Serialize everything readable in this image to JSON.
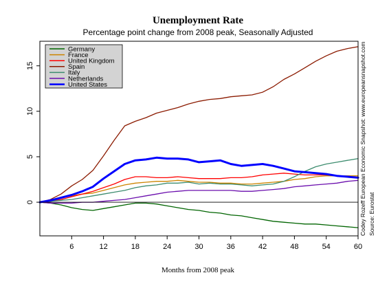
{
  "chart_data": {
    "type": "line",
    "title": "Unemployment Rate",
    "subtitle": "Percentage point change from 2008 peak, Seasonally Adjusted",
    "xlabel": "Months from 2008 peak",
    "ylabel": "",
    "xlim": [
      0,
      60
    ],
    "ylim": [
      -3.7,
      17.7
    ],
    "x_ticks": [
      6,
      12,
      18,
      24,
      30,
      36,
      42,
      48,
      54,
      60
    ],
    "y_ticks": [
      0,
      5,
      10,
      15
    ],
    "zero_line": true,
    "grid": false,
    "legend_position": "top-left",
    "side_notes": [
      "Codey Rozeff European Economic Snapshot: www.europeansnapshot.com",
      "Source: Eurostat"
    ],
    "series": [
      {
        "name": "Germany",
        "color": "#006400",
        "width": 1.3,
        "x": [
          0,
          2,
          4,
          6,
          8,
          10,
          12,
          14,
          16,
          18,
          20,
          22,
          24,
          26,
          28,
          30,
          32,
          34,
          36,
          38,
          40,
          42,
          44,
          46,
          48,
          50,
          52,
          54,
          56,
          58,
          60
        ],
        "y": [
          0,
          -0.1,
          -0.3,
          -0.6,
          -0.8,
          -0.9,
          -0.7,
          -0.5,
          -0.3,
          -0.1,
          -0.1,
          -0.2,
          -0.4,
          -0.6,
          -0.8,
          -0.9,
          -1.1,
          -1.2,
          -1.4,
          -1.5,
          -1.7,
          -1.9,
          -2.1,
          -2.2,
          -2.3,
          -2.4,
          -2.4,
          -2.5,
          -2.6,
          -2.7,
          -2.8
        ]
      },
      {
        "name": "France",
        "color": "#CC8400",
        "width": 1.3,
        "x": [
          0,
          2,
          4,
          6,
          8,
          10,
          12,
          14,
          16,
          18,
          20,
          22,
          24,
          26,
          28,
          30,
          32,
          34,
          36,
          38,
          40,
          42,
          44,
          46,
          48,
          50,
          52,
          54,
          56,
          58,
          60
        ],
        "y": [
          0,
          0.2,
          0.5,
          0.7,
          0.9,
          1.0,
          1.3,
          1.6,
          1.9,
          2.1,
          2.2,
          2.3,
          2.3,
          2.4,
          2.3,
          2.2,
          2.2,
          2.1,
          2.1,
          2.0,
          2.0,
          2.1,
          2.2,
          2.3,
          2.5,
          2.6,
          2.8,
          2.9,
          2.9,
          2.9,
          2.9
        ]
      },
      {
        "name": "United Kingdom",
        "color": "#FF0000",
        "width": 1.3,
        "x": [
          0,
          2,
          4,
          6,
          8,
          10,
          12,
          14,
          16,
          18,
          20,
          22,
          24,
          26,
          28,
          30,
          32,
          34,
          36,
          38,
          40,
          42,
          44,
          46,
          48,
          50,
          52,
          54,
          56,
          58,
          60
        ],
        "y": [
          0,
          0.1,
          0.3,
          0.6,
          0.9,
          1.2,
          1.6,
          2.0,
          2.5,
          2.8,
          2.8,
          2.7,
          2.7,
          2.8,
          2.7,
          2.6,
          2.6,
          2.6,
          2.7,
          2.7,
          2.8,
          3.0,
          3.1,
          3.2,
          3.1,
          3.0,
          3.0,
          3.0,
          2.9,
          2.8,
          2.7
        ]
      },
      {
        "name": "Spain",
        "color": "#8B1A00",
        "width": 1.3,
        "x": [
          0,
          2,
          4,
          6,
          8,
          10,
          12,
          14,
          16,
          18,
          20,
          22,
          24,
          26,
          28,
          30,
          32,
          34,
          36,
          38,
          40,
          42,
          44,
          46,
          48,
          50,
          52,
          54,
          56,
          58,
          60
        ],
        "y": [
          0,
          0.3,
          0.9,
          1.8,
          2.5,
          3.5,
          5.1,
          6.8,
          8.4,
          8.9,
          9.3,
          9.8,
          10.1,
          10.4,
          10.8,
          11.1,
          11.3,
          11.4,
          11.6,
          11.7,
          11.8,
          12.1,
          12.7,
          13.5,
          14.1,
          14.8,
          15.5,
          16.1,
          16.6,
          16.9,
          17.1
        ]
      },
      {
        "name": "Italy",
        "color": "#3C8C6E",
        "width": 1.3,
        "x": [
          0,
          2,
          4,
          6,
          8,
          10,
          12,
          14,
          16,
          18,
          20,
          22,
          24,
          26,
          28,
          30,
          32,
          34,
          36,
          38,
          40,
          42,
          44,
          46,
          48,
          50,
          52,
          54,
          56,
          58,
          60
        ],
        "y": [
          0,
          0.1,
          0.2,
          0.3,
          0.5,
          0.7,
          0.9,
          1.1,
          1.3,
          1.6,
          1.8,
          1.9,
          2.1,
          2.1,
          2.2,
          2.0,
          2.1,
          2.0,
          2.0,
          1.9,
          1.8,
          1.9,
          2.0,
          2.3,
          2.8,
          3.4,
          3.9,
          4.2,
          4.4,
          4.6,
          4.8
        ]
      },
      {
        "name": "Netherlands",
        "color": "#6A0DAD",
        "width": 1.3,
        "x": [
          0,
          2,
          4,
          6,
          8,
          10,
          12,
          14,
          16,
          18,
          20,
          22,
          24,
          26,
          28,
          30,
          32,
          34,
          36,
          38,
          40,
          42,
          44,
          46,
          48,
          50,
          52,
          54,
          56,
          58,
          60
        ],
        "y": [
          0,
          -0.1,
          -0.1,
          -0.1,
          0,
          0,
          0.1,
          0.2,
          0.3,
          0.5,
          0.7,
          0.9,
          1.1,
          1.2,
          1.3,
          1.3,
          1.3,
          1.3,
          1.3,
          1.2,
          1.2,
          1.3,
          1.4,
          1.5,
          1.7,
          1.8,
          1.9,
          2.0,
          2.1,
          2.3,
          2.4
        ]
      },
      {
        "name": "United States",
        "color": "#0000FF",
        "width": 3,
        "x": [
          0,
          2,
          4,
          6,
          8,
          10,
          12,
          14,
          16,
          18,
          20,
          22,
          24,
          26,
          28,
          30,
          32,
          34,
          36,
          38,
          40,
          42,
          44,
          46,
          48,
          50,
          52,
          54,
          56,
          58,
          60
        ],
        "y": [
          0,
          0.2,
          0.5,
          0.8,
          1.2,
          1.7,
          2.6,
          3.4,
          4.2,
          4.6,
          4.7,
          4.9,
          4.8,
          4.8,
          4.7,
          4.4,
          4.5,
          4.6,
          4.2,
          4.0,
          4.1,
          4.2,
          4.0,
          3.7,
          3.4,
          3.3,
          3.2,
          3.1,
          2.9,
          2.8,
          2.7
        ]
      }
    ]
  }
}
